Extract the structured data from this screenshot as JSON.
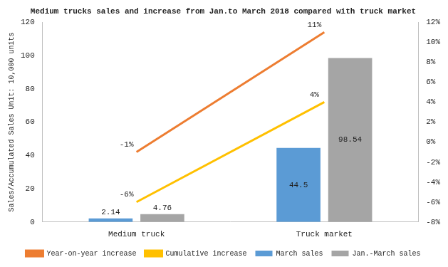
{
  "chart_data": {
    "type": "bar",
    "title": "Medium trucks sales and increase from Jan.to March 2018 compared with truck market",
    "categories": [
      "Medium truck",
      "Truck market"
    ],
    "y_label": "Sales/Accumulated Sales Unit: 10,000 units",
    "ylim": [
      0,
      120
    ],
    "yticks": [
      0,
      20,
      40,
      60,
      80,
      100,
      120
    ],
    "y2lim": [
      -8,
      12
    ],
    "y2ticks": [
      {
        "value": -8,
        "label": "-8%"
      },
      {
        "value": -6,
        "label": "-6%"
      },
      {
        "value": -4,
        "label": "-4%"
      },
      {
        "value": -2,
        "label": "-2%"
      },
      {
        "value": 0,
        "label": "0%"
      },
      {
        "value": 2,
        "label": "2%"
      },
      {
        "value": 4,
        "label": "4%"
      },
      {
        "value": 6,
        "label": "6%"
      },
      {
        "value": 8,
        "label": "8%"
      },
      {
        "value": 10,
        "label": "10%"
      },
      {
        "value": 12,
        "label": "12%"
      }
    ],
    "grid": false,
    "legend": "bottom",
    "data_labels": true,
    "series": [
      {
        "name": "March sales",
        "type": "bar",
        "color": "#5B9BD5",
        "values": [
          2.14,
          44.5
        ]
      },
      {
        "name": "Jan.-March sales",
        "type": "bar",
        "color": "#A5A5A5",
        "values": [
          4.76,
          98.54
        ]
      },
      {
        "name": "Year-on-year increase",
        "type": "line",
        "axis": "y2",
        "color": "#ED7D31",
        "values": [
          -1,
          11
        ],
        "value_labels": [
          "-1%",
          "11%"
        ]
      },
      {
        "name": "Cumulative increase",
        "type": "line",
        "axis": "y2",
        "color": "#FFC000",
        "values": [
          -6,
          4
        ],
        "value_labels": [
          "-6%",
          "4%"
        ]
      }
    ]
  }
}
